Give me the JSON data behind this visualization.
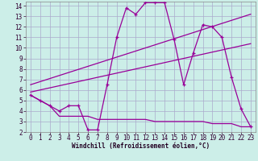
{
  "xlabel": "Windchill (Refroidissement éolien,°C)",
  "background_color": "#cceee8",
  "line_color": "#990099",
  "grid_color": "#aaaacc",
  "xlim": [
    -0.5,
    23.5
  ],
  "ylim": [
    2,
    14.4
  ],
  "yticks": [
    2,
    3,
    4,
    5,
    6,
    7,
    8,
    9,
    10,
    11,
    12,
    13,
    14
  ],
  "xticks": [
    0,
    1,
    2,
    3,
    4,
    5,
    6,
    7,
    8,
    9,
    10,
    11,
    12,
    13,
    14,
    15,
    16,
    17,
    18,
    19,
    20,
    21,
    22,
    23
  ],
  "line1_x": [
    0,
    1,
    2,
    3,
    4,
    5,
    6,
    7,
    8,
    9,
    10,
    11,
    12,
    13,
    14,
    15,
    16,
    17,
    18,
    19,
    20,
    21,
    22,
    23
  ],
  "line1_y": [
    5.5,
    5.0,
    4.5,
    4.0,
    4.5,
    4.5,
    2.2,
    2.2,
    6.5,
    11.0,
    13.8,
    13.2,
    14.3,
    14.3,
    14.3,
    10.8,
    6.5,
    9.5,
    12.2,
    12.0,
    11.0,
    7.2,
    4.2,
    2.5
  ],
  "line2_x": [
    0,
    1,
    2,
    3,
    4,
    5,
    6,
    7,
    8,
    9,
    10,
    11,
    12,
    13,
    14,
    15,
    16,
    17,
    18,
    19,
    20,
    21,
    22,
    23
  ],
  "line2_y": [
    5.5,
    5.0,
    4.5,
    3.5,
    3.5,
    3.5,
    3.5,
    3.2,
    3.2,
    3.2,
    3.2,
    3.2,
    3.2,
    3.0,
    3.0,
    3.0,
    3.0,
    3.0,
    3.0,
    2.8,
    2.8,
    2.8,
    2.5,
    2.5
  ],
  "line3_x": [
    0,
    23
  ],
  "line3_y": [
    5.8,
    10.4
  ],
  "line4_x": [
    0,
    23
  ],
  "line4_y": [
    6.5,
    13.2
  ],
  "tick_fontsize": 5.5,
  "xlabel_fontsize": 5.5
}
